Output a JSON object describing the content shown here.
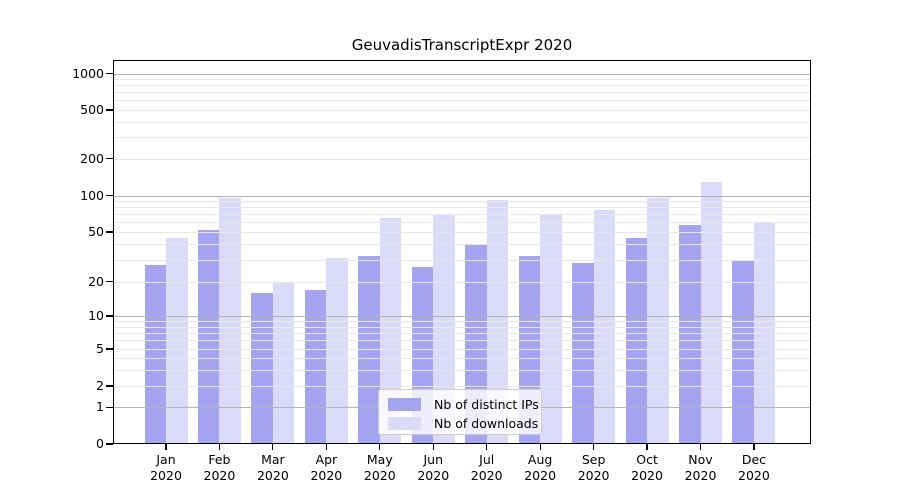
{
  "title": "GeuvadisTranscriptExpr 2020",
  "chart_data": {
    "type": "bar",
    "title": "GeuvadisTranscriptExpr 2020",
    "categories": [
      "Jan 2020",
      "Feb 2020",
      "Mar 2020",
      "Apr 2020",
      "May 2020",
      "Jun 2020",
      "Jul 2020",
      "Aug 2020",
      "Sep 2020",
      "Oct 2020",
      "Nov 2020",
      "Dec 2020"
    ],
    "month_labels": [
      "Jan",
      "Feb",
      "Mar",
      "Apr",
      "May",
      "Jun",
      "Jul",
      "Aug",
      "Sep",
      "Oct",
      "Nov",
      "Dec"
    ],
    "year_label": "2020",
    "series": [
      {
        "name": "Nb of distinct IPs",
        "color": "#a4a4f0",
        "values": [
          27,
          52,
          16,
          17,
          32,
          26,
          40,
          32,
          28,
          45,
          57,
          30
        ]
      },
      {
        "name": "Nb of downloads",
        "color": "#dbdbf9",
        "values": [
          45,
          95,
          20,
          31,
          65,
          70,
          93,
          70,
          76,
          95,
          130,
          60
        ]
      }
    ],
    "y_axis": {
      "scale": "symlog",
      "ticks": [
        0,
        1,
        2,
        5,
        10,
        20,
        50,
        100,
        200,
        500,
        1000
      ],
      "range": [
        0,
        1200
      ]
    },
    "xlabel": "",
    "ylabel": "",
    "grid": true,
    "legend_position": "lower center"
  },
  "colors": {
    "bar_dark": "#a4a4f0",
    "bar_light": "#dbdbf9",
    "grid_major": "#b3b3b3",
    "grid_minor": "#e7e7e7",
    "axis": "#000000"
  }
}
